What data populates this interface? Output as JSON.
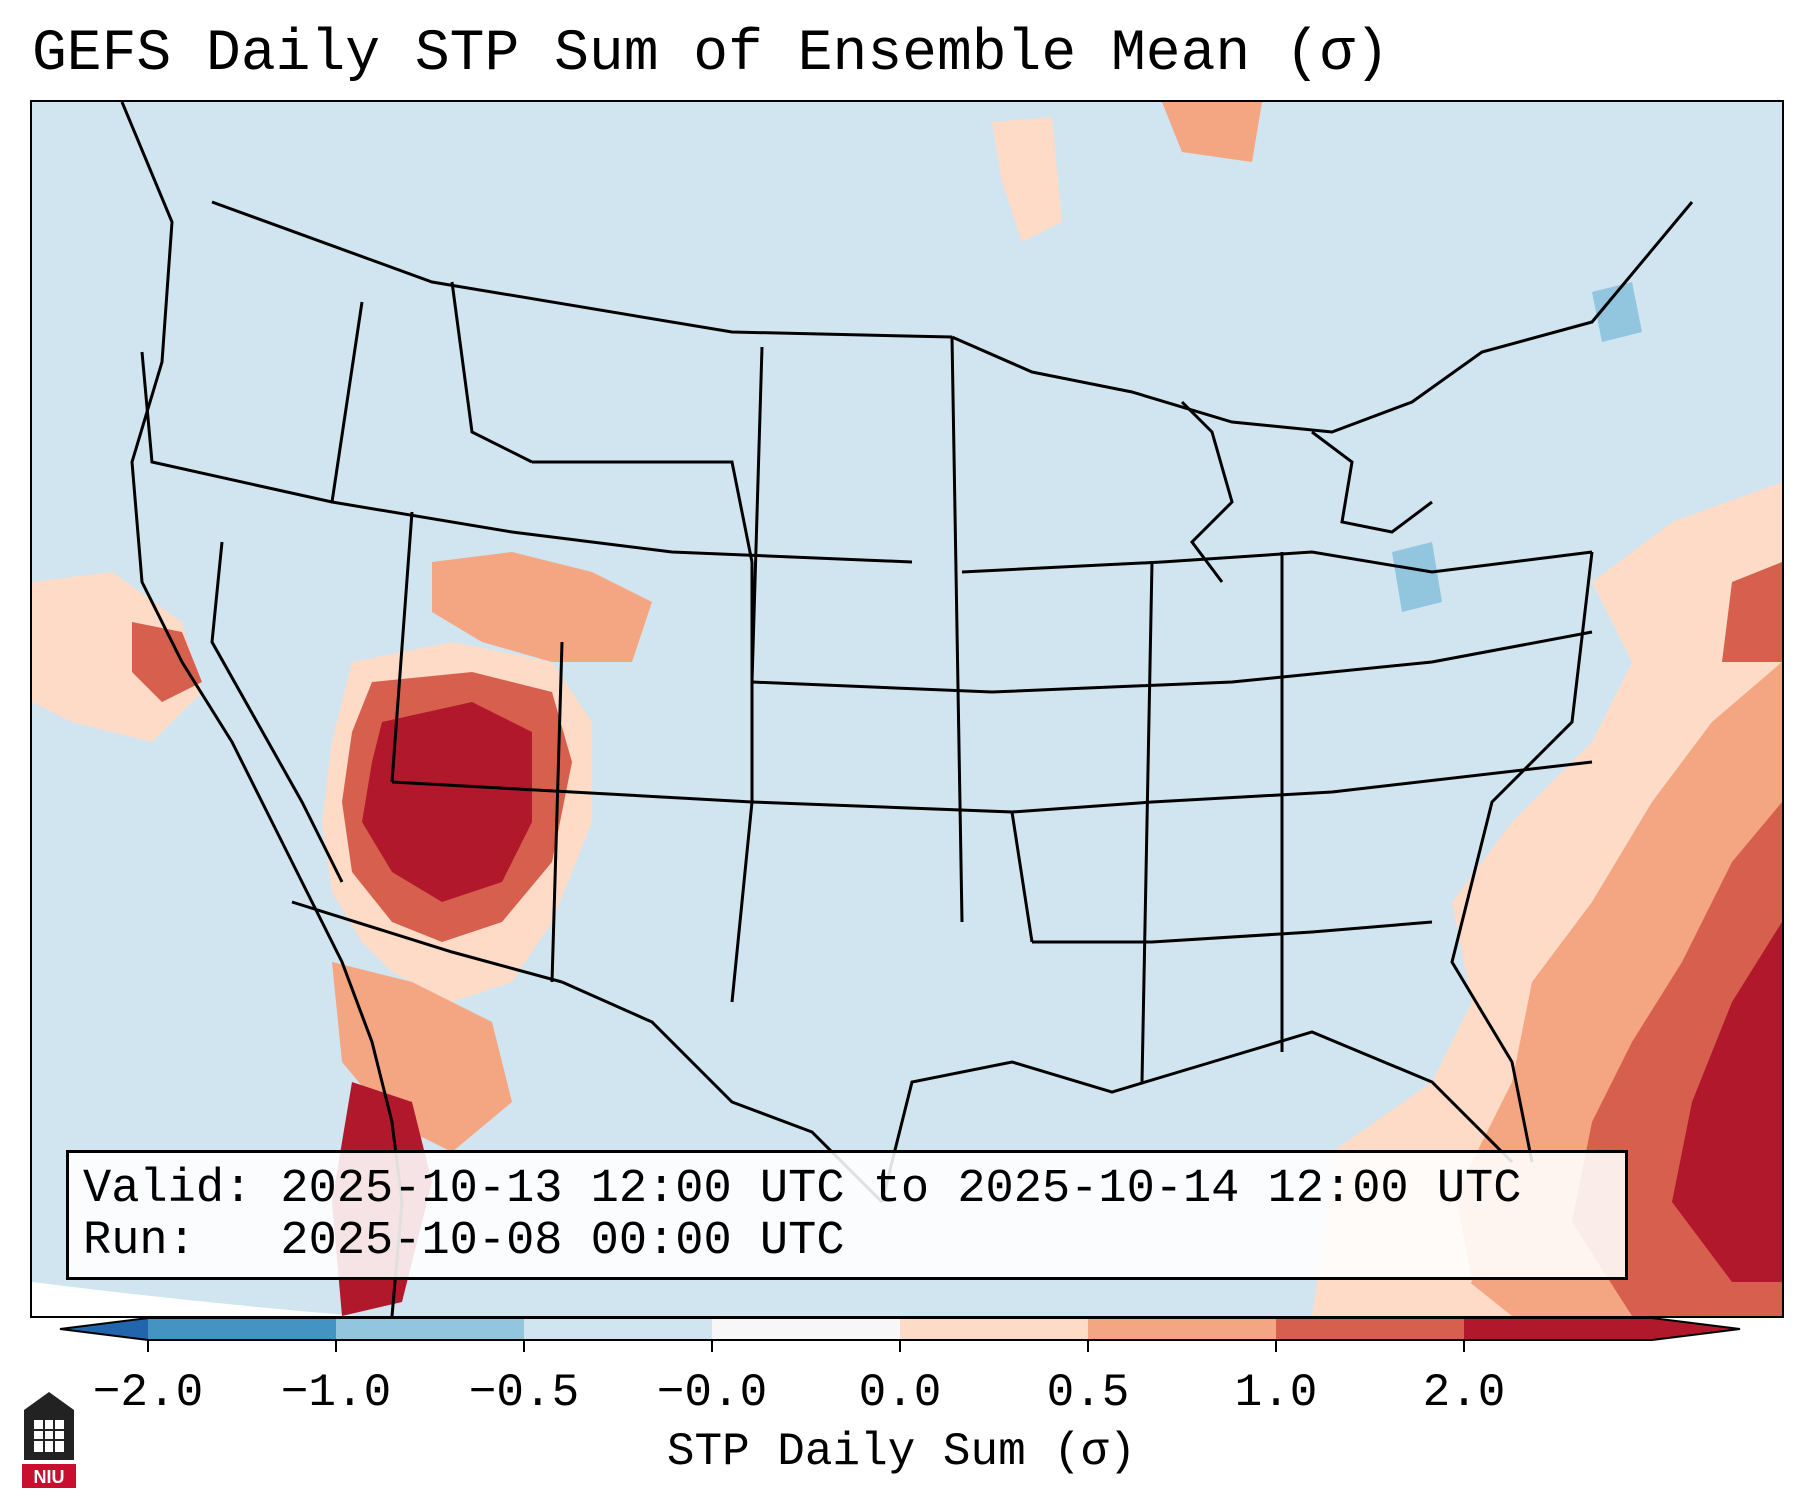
{
  "title": "GEFS Daily STP Sum of Ensemble Mean (σ)",
  "info": {
    "valid_line": "Valid: 2025-10-13 12:00 UTC to 2025-10-14 12:00 UTC",
    "run_line": "Run:   2025-10-08 00:00 UTC"
  },
  "colorbar": {
    "label": "STP Daily Sum (σ)",
    "ticks": [
      "−2.0",
      "−1.0",
      "−0.5",
      "−0.0",
      "0.0",
      "0.5",
      "1.0",
      "2.0"
    ],
    "colors": [
      "#4393c3",
      "#92c5de",
      "#d1e5f0",
      "#f7f7f7",
      "#fddbc7",
      "#f4a582",
      "#d6604d",
      "#b2182b"
    ],
    "under_color": "#2166ac",
    "over_color": "#b2182b"
  },
  "map": {
    "background_color": "#d1e5f0",
    "outside_color": "#ffffff",
    "description": "CONUS STP anomaly field"
  },
  "logo": {
    "text": "NIU",
    "color": "#c8102e"
  }
}
